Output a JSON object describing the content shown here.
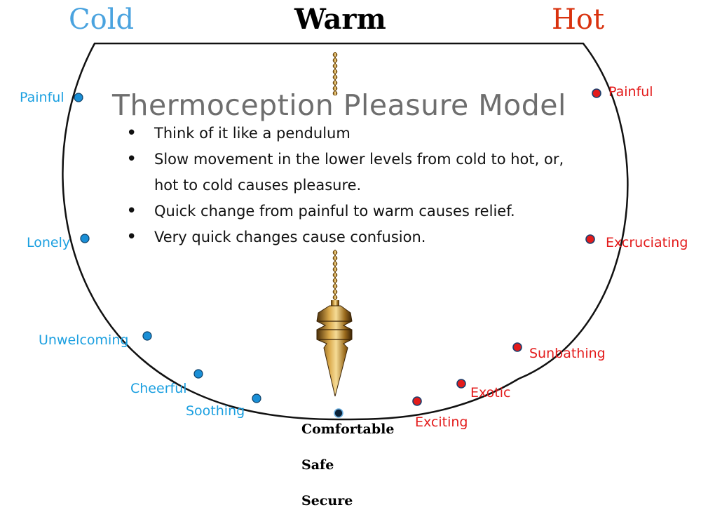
{
  "headers": {
    "cold": "Cold",
    "warm": "Warm",
    "hot": "Hot"
  },
  "title": "Thermoception Pleasure Model",
  "bullets": [
    "Think of it like a pendulum",
    "Slow movement in the lower levels from cold to hot, or, hot to cold causes pleasure.",
    "Quick change from painful to warm causes relief.",
    "Very quick changes cause confusion."
  ],
  "cold_points": [
    "Painful",
    "Lonely",
    "Unwelcoming",
    "Cheerful",
    "Soothing"
  ],
  "hot_points": [
    "Painful",
    "Excruciating",
    "Sunbathing",
    "Exotic",
    "Exciting"
  ],
  "center_points": [
    "Comfortable",
    "Safe",
    "Secure"
  ],
  "colors": {
    "cold": "#1a9fe0",
    "hot": "#e31b1b",
    "warm": "#000000"
  }
}
